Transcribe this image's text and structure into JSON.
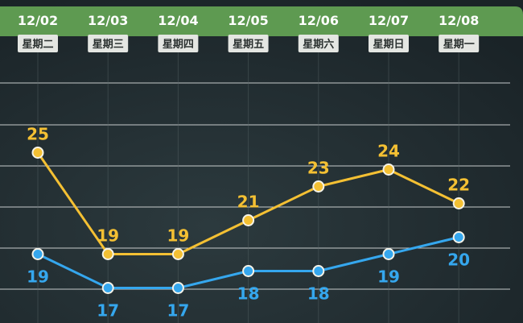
{
  "chart_data": {
    "type": "line",
    "categories": [
      "12/02",
      "12/03",
      "12/04",
      "12/05",
      "12/06",
      "12/07",
      "12/08"
    ],
    "weekdays": [
      "星期二",
      "星期三",
      "星期四",
      "星期五",
      "星期六",
      "星期日",
      "星期一"
    ],
    "series": [
      {
        "values": [
          25,
          19,
          19,
          21,
          23,
          24,
          22
        ],
        "color": "#f4c033"
      },
      {
        "values": [
          19,
          17,
          17,
          18,
          18,
          19,
          20
        ],
        "color": "#35a7ee"
      }
    ],
    "ylim": [
      14.5,
      29.5
    ],
    "grid": true
  },
  "theme": {
    "header_bg": "#5e9a51",
    "badge_bg": "#e4e6e2",
    "badge_text": "#2b3130",
    "grid_color": "#d8dcdc"
  }
}
